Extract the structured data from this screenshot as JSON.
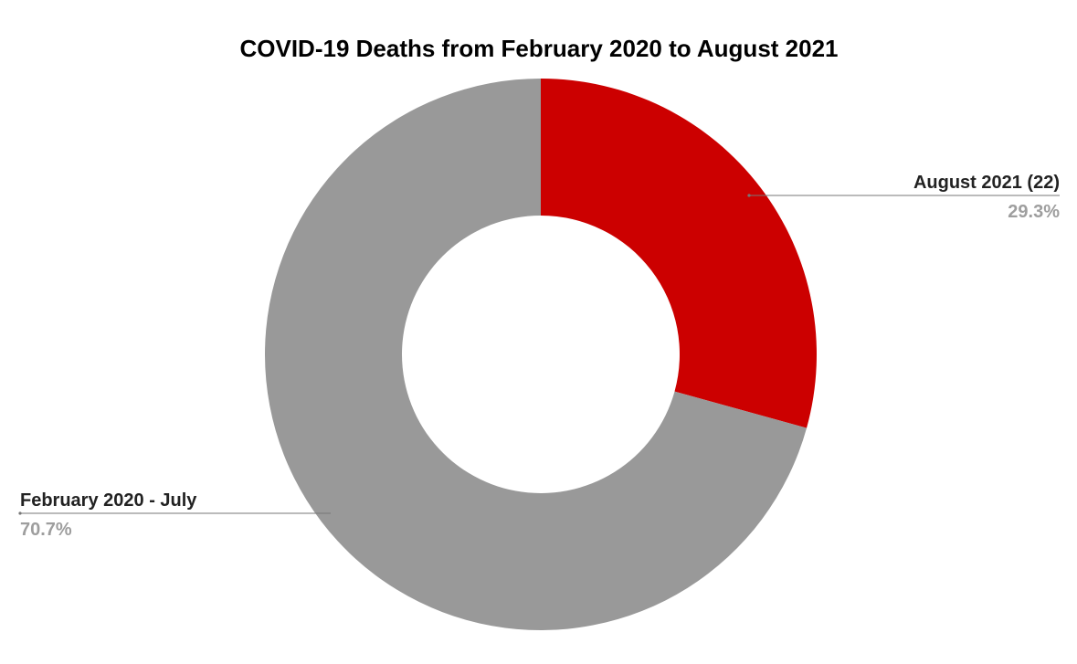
{
  "chart_data": {
    "type": "pie",
    "title": "COVID-19 Deaths from February 2020 to August 2021",
    "donut": true,
    "legend": "none",
    "slices": [
      {
        "label": "August 2021 (22)",
        "percent_label": "29.3%",
        "value": 29.3,
        "color": "#cc0000"
      },
      {
        "label": "February 2020 - July",
        "percent_label": "70.7%",
        "value": 70.7,
        "color": "#999999"
      }
    ]
  }
}
